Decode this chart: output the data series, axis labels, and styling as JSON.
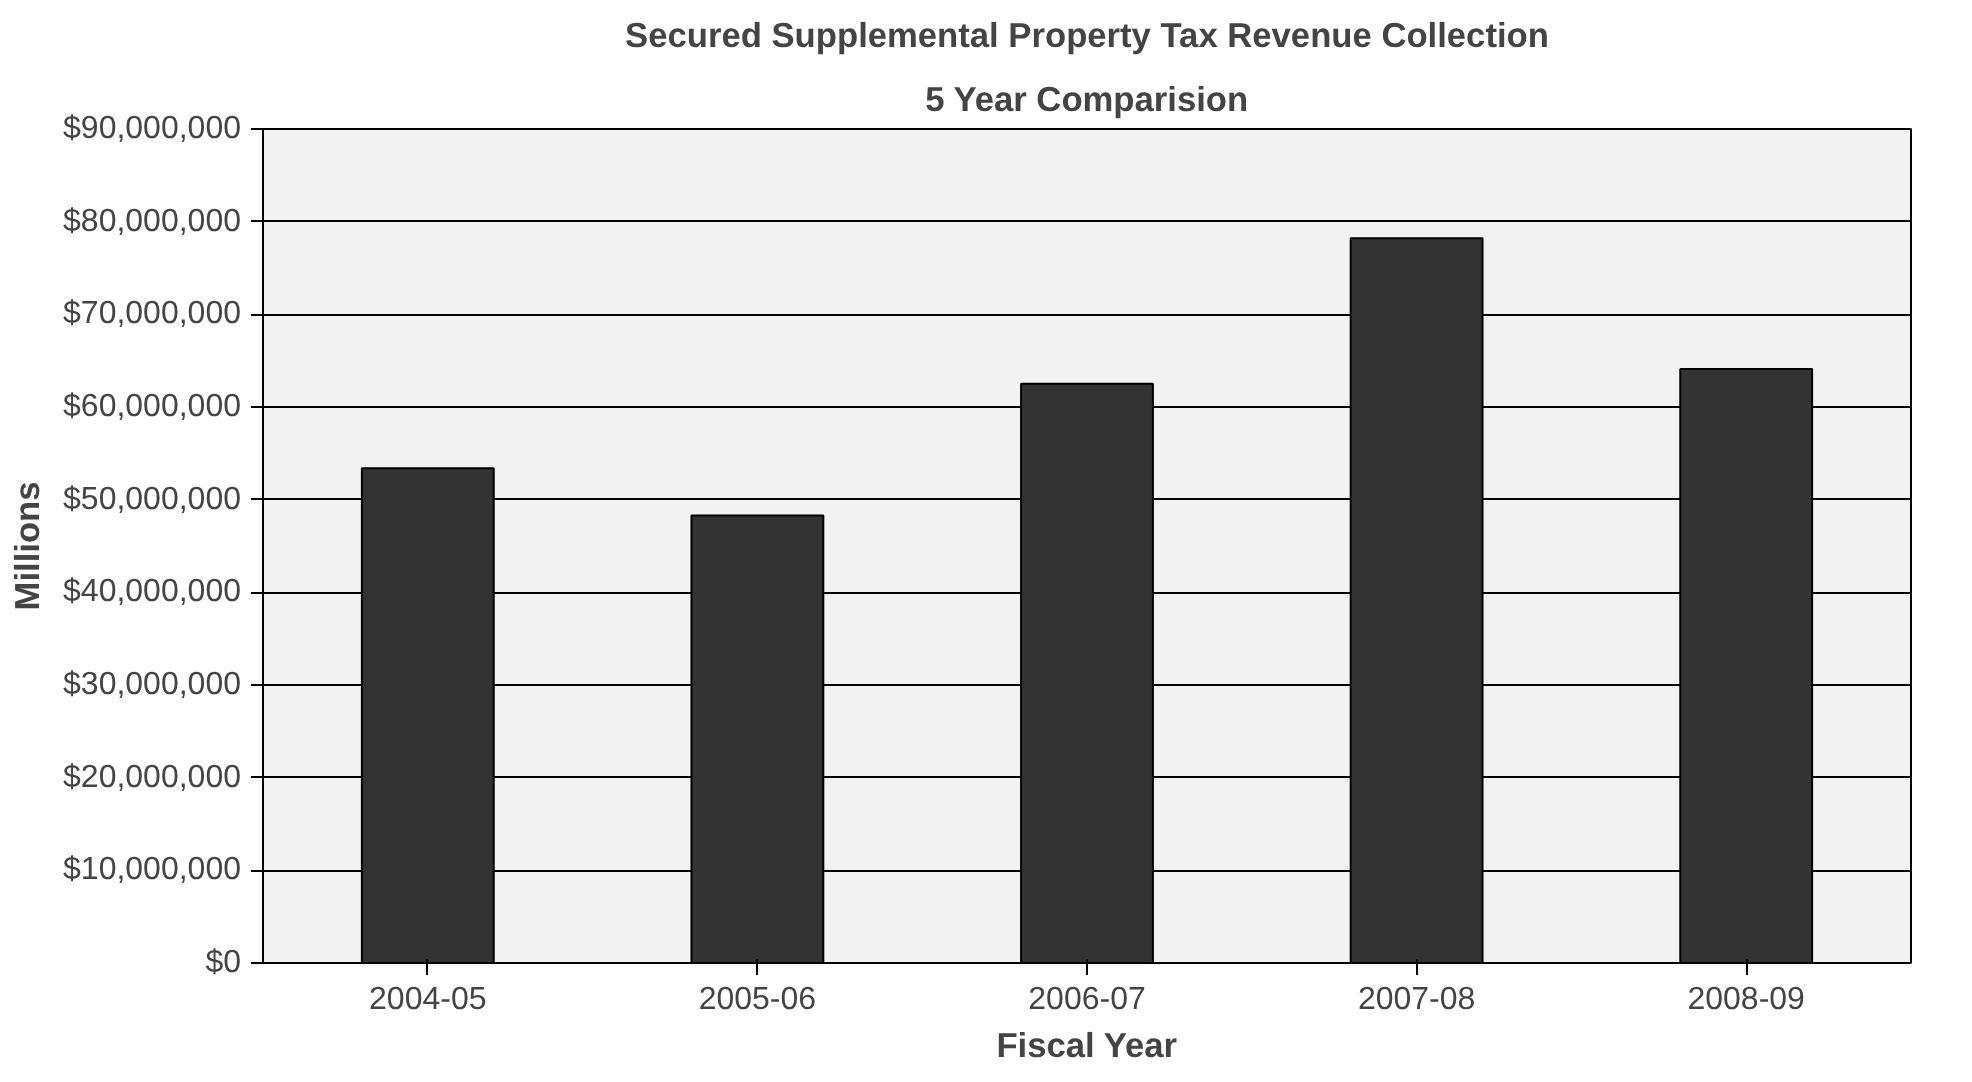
{
  "chart_data": {
    "type": "bar",
    "title": "Secured Supplemental Property Tax Revenue Collection",
    "subtitle": "5 Year Comparision",
    "xlabel": "Fiscal Year",
    "ylabel": "Millions",
    "categories": [
      "2004-05",
      "2005-06",
      "2006-07",
      "2007-08",
      "2008-09"
    ],
    "values": [
      53400000,
      48300000,
      62500000,
      78200000,
      64100000
    ],
    "color": "#333333",
    "ylim": [
      0,
      90000000
    ],
    "yticks": [
      {
        "value": 0,
        "label": "$0"
      },
      {
        "value": 10000000,
        "label": "$10,000,000"
      },
      {
        "value": 20000000,
        "label": "$20,000,000"
      },
      {
        "value": 30000000,
        "label": "$30,000,000"
      },
      {
        "value": 40000000,
        "label": "$40,000,000"
      },
      {
        "value": 50000000,
        "label": "$50,000,000"
      },
      {
        "value": 60000000,
        "label": "$60,000,000"
      },
      {
        "value": 70000000,
        "label": "$70,000,000"
      },
      {
        "value": 80000000,
        "label": "$80,000,000"
      },
      {
        "value": 90000000,
        "label": "$90,000,000"
      }
    ],
    "grid": "y"
  }
}
